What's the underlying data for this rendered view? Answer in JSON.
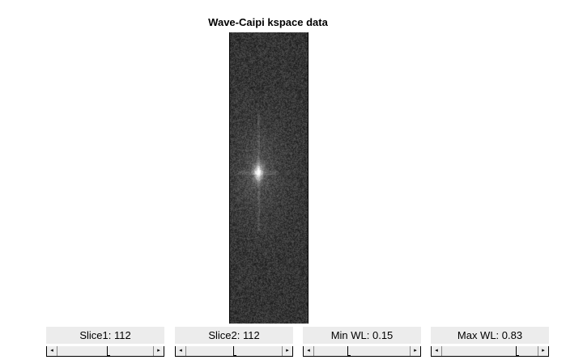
{
  "figure": {
    "title": "Wave-Caipi kspace data"
  },
  "controls": [
    {
      "label": "Slice1: 112",
      "value": 112,
      "fraction": 0.52,
      "left_arrow": "◂",
      "right_arrow": "▸"
    },
    {
      "label": "Slice2: 112",
      "value": 112,
      "fraction": 0.49,
      "left_arrow": "◂",
      "right_arrow": "▸"
    },
    {
      "label": "Min WL: 0.15",
      "value": 0.15,
      "fraction": 0.35,
      "left_arrow": "◂",
      "right_arrow": "▸"
    },
    {
      "label": "Max WL: 0.83",
      "value": 0.83,
      "fraction": 0.77,
      "left_arrow": "◂",
      "right_arrow": "▸"
    }
  ],
  "colors": {
    "panel_bg": "#ececec",
    "image_base": "#3c3c3c"
  }
}
